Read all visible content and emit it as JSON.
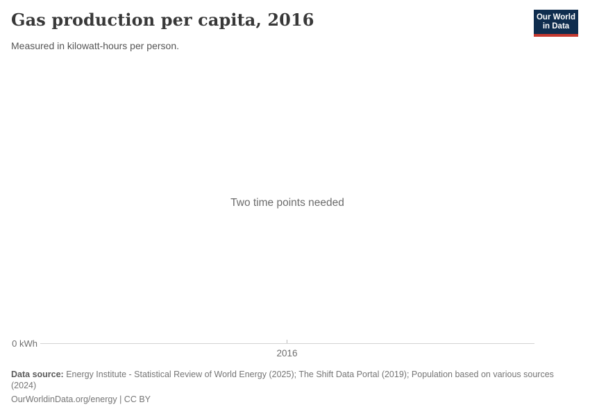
{
  "header": {
    "title": "Gas production per capita, 2016",
    "subtitle": "Measured in kilowatt-hours per person.",
    "logo": {
      "line1": "Our World",
      "line2": "in Data",
      "background_color": "#0f2d4e",
      "accent_color": "#c5392f",
      "text_color": "#ffffff"
    }
  },
  "chart": {
    "empty_message": "Two time points needed",
    "y_axis_zero_label": "0 kWh",
    "x_axis_tick_label": "2016",
    "axis_line_color": "#d3d3d3",
    "tick_color": "#b8b8b8"
  },
  "chart_data": {
    "type": "line",
    "title": "Gas production per capita, 2016",
    "subtitle": "Measured in kilowatt-hours per person.",
    "x_ticks": [
      "2016"
    ],
    "y_ticks": [
      "0 kWh"
    ],
    "series": [],
    "annotations": [
      "Two time points needed"
    ],
    "grid": false,
    "legend_position": "none",
    "note": "No data series rendered; chart displays an empty-state message because two time points are needed."
  },
  "footer": {
    "data_source_label": "Data source:",
    "data_source_text": "Energy Institute - Statistical Review of World Energy (2025); The Shift Data Portal (2019); Population based on various sources (2024)",
    "citation": "OurWorldinData.org/energy | CC BY"
  }
}
